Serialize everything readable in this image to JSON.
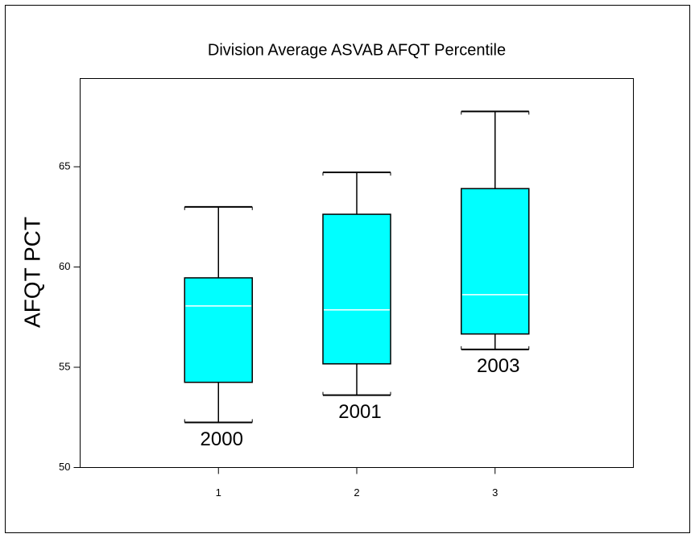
{
  "chart_data": {
    "type": "box",
    "title": "Division Average ASVAB AFQT Percentile",
    "y_label": "AFQT PCT",
    "color": "#00ffff",
    "median_color": "#ffffff",
    "xlim": [
      0,
      4
    ],
    "xticks": [
      1,
      2,
      3
    ],
    "ylim": [
      50,
      69.4
    ],
    "yticks": [
      50,
      55,
      60,
      65
    ],
    "boxes": [
      {
        "label": "2000",
        "x": 1,
        "whisker_low": 52.25,
        "q1": 54.25,
        "median": 58.06,
        "q3": 59.46,
        "whisker_high": 63.0
      },
      {
        "label": "2001",
        "x": 2,
        "whisker_low": 53.61,
        "q1": 55.17,
        "median": 57.86,
        "q3": 62.63,
        "whisker_high": 64.72
      },
      {
        "label": "2003",
        "x": 3,
        "whisker_low": 55.89,
        "q1": 56.66,
        "median": 58.62,
        "q3": 63.91,
        "whisker_high": 67.76
      }
    ]
  }
}
